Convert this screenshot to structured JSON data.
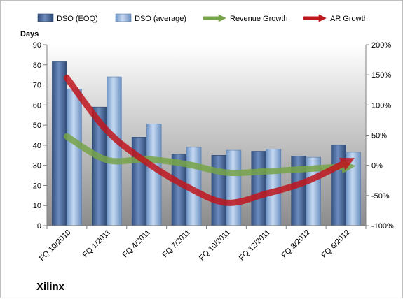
{
  "chart_data": {
    "type": "bar",
    "subtype": "combo-bar-line",
    "brand": "Xilinx",
    "ylabel": "Days",
    "ylim": [
      0,
      90
    ],
    "yticks": [
      "0",
      "10",
      "20",
      "30",
      "40",
      "50",
      "60",
      "70",
      "80",
      "90"
    ],
    "y2lim": [
      -100,
      200
    ],
    "y2ticks": [
      "-100%",
      "-50%",
      "0%",
      "50%",
      "100%",
      "150%",
      "200%"
    ],
    "categories": [
      "FQ 10/2010",
      "FQ 1/2011",
      "FQ 4/2011",
      "FQ 7/2011",
      "FQ 10/2011",
      "FQ 12/2011",
      "FQ 3/2012",
      "FQ 6/2012"
    ],
    "legend_position": "top",
    "grid": false,
    "series": [
      {
        "name": "DSO (EOQ)",
        "type": "bar",
        "axis": "left",
        "color": "#4f6fa3",
        "values": [
          81.5,
          59,
          44,
          35.5,
          35,
          37,
          34.5,
          40
        ]
      },
      {
        "name": "DSO (average)",
        "type": "bar",
        "axis": "left",
        "color": "#a9c4e6",
        "values": [
          68,
          74,
          50.5,
          39,
          37.5,
          38,
          34,
          36.5
        ]
      },
      {
        "name": "Revenue Growth",
        "type": "line",
        "axis": "right",
        "color": "#77a448",
        "values": [
          48,
          9,
          10,
          2,
          -12,
          -10,
          -6,
          -2
        ]
      },
      {
        "name": "AR Growth",
        "type": "line",
        "axis": "right",
        "color": "#c0161d",
        "values": [
          145,
          58,
          5,
          -35,
          -62,
          -47,
          -27,
          5
        ]
      }
    ]
  }
}
